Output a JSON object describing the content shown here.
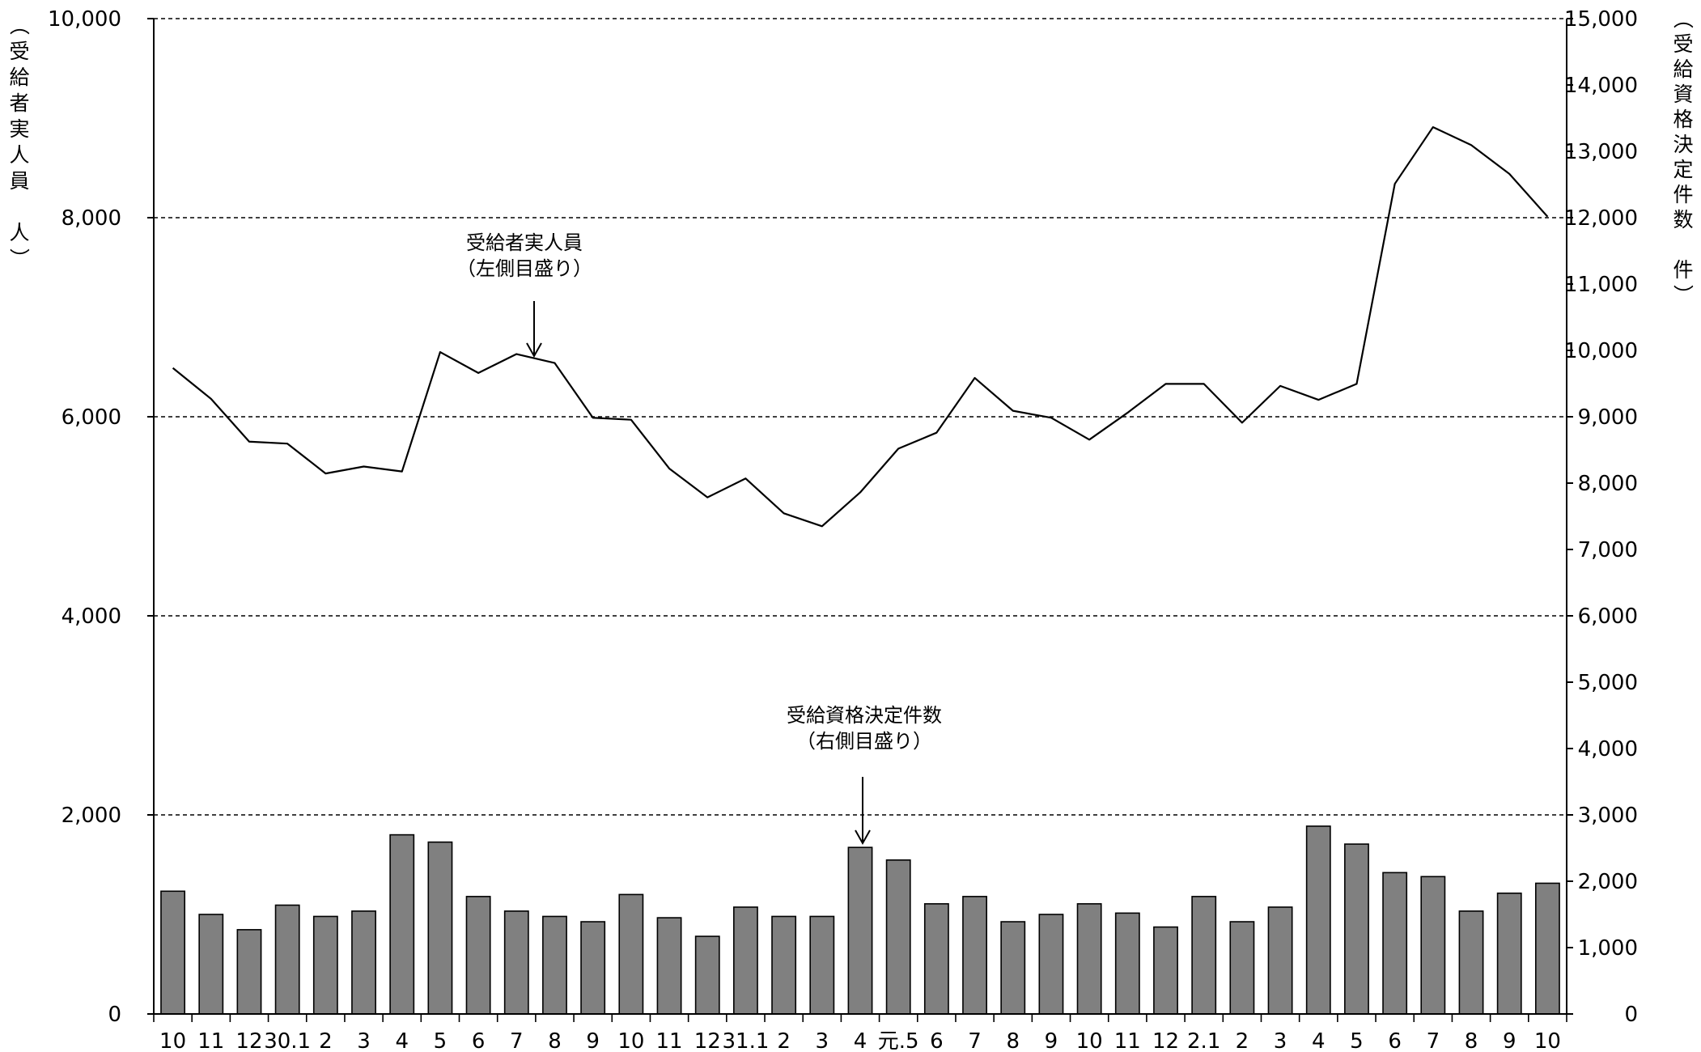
{
  "chart_data": {
    "type": "bar+line",
    "categories": [
      "10",
      "11",
      "12",
      "30.1",
      "2",
      "3",
      "4",
      "5",
      "6",
      "7",
      "8",
      "9",
      "10",
      "11",
      "12",
      "31.1",
      "2",
      "3",
      "4",
      "元.5",
      "6",
      "7",
      "8",
      "9",
      "10",
      "11",
      "12",
      "2.1",
      "2",
      "3",
      "4",
      "5",
      "6",
      "7",
      "8",
      "9",
      "10"
    ],
    "series": [
      {
        "name": "受給者実人員",
        "type": "line",
        "axis": "left",
        "values": [
          6490,
          6180,
          5750,
          5730,
          5430,
          5500,
          5450,
          6650,
          6440,
          6630,
          6540,
          5990,
          5970,
          5480,
          5190,
          5380,
          5030,
          4900,
          5240,
          5680,
          5840,
          6390,
          6060,
          5990,
          5770,
          6040,
          6330,
          6330,
          5940,
          6310,
          6170,
          6330,
          8340,
          8910,
          8730,
          8440,
          8010
        ]
      },
      {
        "name": "受給資格決定件数",
        "type": "bar",
        "axis": "right",
        "values": [
          1850,
          1500,
          1270,
          1640,
          1470,
          1550,
          2700,
          2590,
          1770,
          1550,
          1470,
          1390,
          1800,
          1450,
          1170,
          1610,
          1470,
          1470,
          2510,
          2320,
          1660,
          1770,
          1390,
          1500,
          1660,
          1520,
          1310,
          1770,
          1390,
          1610,
          2830,
          2560,
          2130,
          2070,
          1550,
          1820,
          1970
        ]
      }
    ],
    "y_left": {
      "label": "（受給者実人員　人）",
      "ticks": [
        "0",
        "2,000",
        "4,000",
        "6,000",
        "8,000",
        "10,000"
      ],
      "ylim": [
        0,
        10000
      ]
    },
    "y_right": {
      "label": "（受給資格決定件数　件）",
      "ticks": [
        "0",
        "1,000",
        "2,000",
        "3,000",
        "4,000",
        "5,000",
        "6,000",
        "7,000",
        "8,000",
        "9,000",
        "10,000",
        "11,000",
        "12,000",
        "13,000",
        "14,000",
        "15,000"
      ],
      "ylim": [
        0,
        15000
      ]
    },
    "annotations": [
      {
        "lines": [
          "受給者実人員",
          "（左側目盛り）"
        ]
      },
      {
        "lines": [
          "受給資格決定件数",
          "（右側目盛り）"
        ]
      }
    ],
    "grid": "dashed horizontal at left-axis major ticks",
    "colors": {
      "bar": "#808080",
      "line": "#000000",
      "grid": "#000000"
    }
  }
}
